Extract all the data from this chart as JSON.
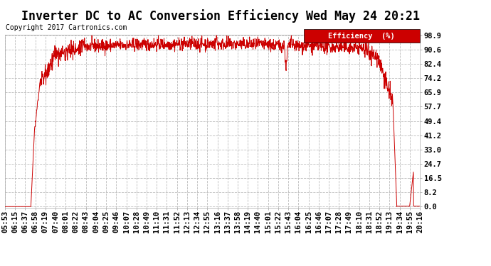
{
  "title": "Inverter DC to AC Conversion Efficiency Wed May 24 20:21",
  "copyright": "Copyright 2017 Cartronics.com",
  "legend_label": "Efficiency  (%)",
  "legend_bg": "#cc0000",
  "legend_fg": "#ffffff",
  "line_color": "#cc0000",
  "bg_color": "#ffffff",
  "grid_color": "#bbbbbb",
  "yticks": [
    0.0,
    8.2,
    16.5,
    24.7,
    33.0,
    41.2,
    49.4,
    57.7,
    65.9,
    74.2,
    82.4,
    90.6,
    98.9
  ],
  "xtick_labels": [
    "05:53",
    "06:15",
    "06:37",
    "06:58",
    "07:19",
    "07:40",
    "08:01",
    "08:22",
    "08:43",
    "09:04",
    "09:25",
    "09:46",
    "10:07",
    "10:28",
    "10:49",
    "11:10",
    "11:31",
    "11:52",
    "12:13",
    "12:34",
    "12:55",
    "13:16",
    "13:37",
    "13:58",
    "14:19",
    "14:40",
    "15:01",
    "15:22",
    "15:43",
    "16:04",
    "16:25",
    "16:46",
    "17:07",
    "17:28",
    "17:49",
    "18:10",
    "18:31",
    "18:52",
    "19:13",
    "19:34",
    "19:55",
    "20:16"
  ],
  "ymin": 0.0,
  "ymax": 98.9,
  "title_fontsize": 12,
  "axis_fontsize": 7.5,
  "copyright_fontsize": 7,
  "legend_fontsize": 7.5
}
